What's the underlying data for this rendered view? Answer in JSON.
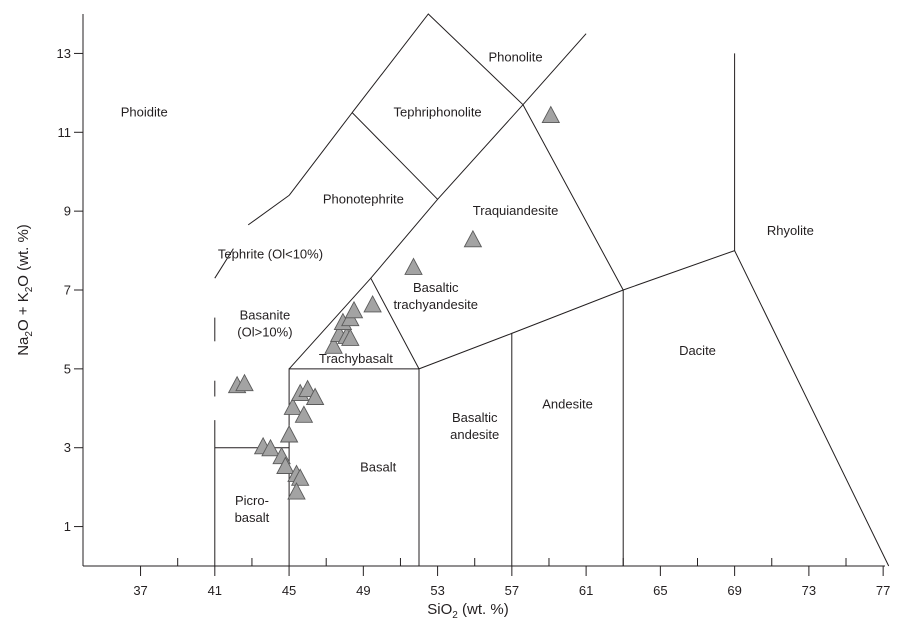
{
  "chart_data": {
    "type": "scatter",
    "diagram": "TAS",
    "xlabel": "SiO",
    "xlabel_sub": "2",
    "xlabel_unit": " (wt. %)",
    "ylabel_parts": [
      "Na",
      "2",
      "O + K",
      "2",
      "O (wt. %)"
    ],
    "xlim": [
      33.9,
      77.1
    ],
    "ylim": [
      0,
      14
    ],
    "x_ticks": [
      37,
      41,
      45,
      49,
      53,
      57,
      61,
      65,
      69,
      73,
      77
    ],
    "y_ticks": [
      1,
      3,
      5,
      7,
      9,
      11,
      13
    ],
    "field_labels": [
      {
        "lines": [
          "Phonolite"
        ],
        "x": 57.2,
        "y": 12.8
      },
      {
        "lines": [
          "Phoidite"
        ],
        "x": 37.2,
        "y": 11.4
      },
      {
        "lines": [
          "Tephriphonolite"
        ],
        "x": 53.0,
        "y": 11.4
      },
      {
        "lines": [
          "Phonotephrite"
        ],
        "x": 49.0,
        "y": 9.2
      },
      {
        "lines": [
          "Traquiandesite"
        ],
        "x": 57.2,
        "y": 8.9
      },
      {
        "lines": [
          "Rhyolite"
        ],
        "x": 72.0,
        "y": 8.4
      },
      {
        "lines": [
          "Tephrite (Ol<10%)"
        ],
        "x": 44.0,
        "y": 7.8
      },
      {
        "lines": [
          "Basaltic",
          "trachyandesite"
        ],
        "x": 52.9,
        "y": 6.95
      },
      {
        "lines": [
          "Basanite",
          "(Ol>10%)"
        ],
        "x": 43.7,
        "y": 6.25
      },
      {
        "lines": [
          "Trachybasalt"
        ],
        "x": 48.6,
        "y": 5.15
      },
      {
        "lines": [
          "Dacite"
        ],
        "x": 67.0,
        "y": 5.35
      },
      {
        "lines": [
          "Andesite"
        ],
        "x": 60.0,
        "y": 4.0
      },
      {
        "lines": [
          "Basaltic",
          "andesite"
        ],
        "x": 55.0,
        "y": 3.65
      },
      {
        "lines": [
          "Basalt"
        ],
        "x": 49.8,
        "y": 2.4
      },
      {
        "lines": [
          "Picro-",
          "basalt"
        ],
        "x": 43.0,
        "y": 1.55
      }
    ],
    "boundaries": [
      [
        [
          45,
          0
        ],
        [
          45,
          5
        ],
        [
          52,
          5
        ],
        [
          52,
          0
        ]
      ],
      [
        [
          52,
          5
        ],
        [
          57,
          5.9
        ],
        [
          57,
          0
        ]
      ],
      [
        [
          57,
          5.9
        ],
        [
          63,
          7
        ],
        [
          63,
          0
        ]
      ],
      [
        [
          63,
          7
        ],
        [
          69,
          8
        ],
        [
          77.3,
          0
        ]
      ],
      [
        [
          69,
          8
        ],
        [
          69,
          13
        ]
      ],
      [
        [
          41,
          3
        ],
        [
          45,
          3
        ]
      ],
      [
        [
          41,
          0
        ],
        [
          41,
          3.7
        ]
      ],
      [
        [
          41,
          4.3
        ],
        [
          41,
          4.7
        ]
      ],
      [
        [
          41,
          5.7
        ],
        [
          41,
          6.3
        ]
      ],
      [
        [
          41,
          7.3
        ],
        [
          42,
          8.05
        ]
      ],
      [
        [
          42.8,
          8.65
        ],
        [
          45,
          9.4
        ]
      ],
      [
        [
          45,
          5
        ],
        [
          49.4,
          7.3
        ],
        [
          52,
          5
        ]
      ],
      [
        [
          49.4,
          7.3
        ],
        [
          53,
          9.3
        ],
        [
          57.6,
          11.7
        ],
        [
          63,
          7
        ]
      ],
      [
        [
          45,
          9.4
        ],
        [
          48.4,
          11.5
        ],
        [
          53,
          9.3
        ]
      ],
      [
        [
          48.4,
          11.5
        ],
        [
          52.5,
          14
        ],
        [
          57.6,
          11.7
        ],
        [
          61,
          13.5
        ]
      ]
    ],
    "samples": [
      {
        "x": 42.2,
        "y": 4.55
      },
      {
        "x": 42.6,
        "y": 4.6
      },
      {
        "x": 43.6,
        "y": 3.0
      },
      {
        "x": 44.0,
        "y": 2.95
      },
      {
        "x": 44.6,
        "y": 2.75
      },
      {
        "x": 44.8,
        "y": 2.5
      },
      {
        "x": 45.0,
        "y": 3.3
      },
      {
        "x": 45.2,
        "y": 4.0
      },
      {
        "x": 45.6,
        "y": 4.35
      },
      {
        "x": 46.0,
        "y": 4.45
      },
      {
        "x": 46.4,
        "y": 4.25
      },
      {
        "x": 45.8,
        "y": 3.8
      },
      {
        "x": 45.4,
        "y": 2.3
      },
      {
        "x": 45.6,
        "y": 2.2
      },
      {
        "x": 45.4,
        "y": 1.85
      },
      {
        "x": 47.4,
        "y": 5.55
      },
      {
        "x": 47.7,
        "y": 5.85
      },
      {
        "x": 48.1,
        "y": 5.8
      },
      {
        "x": 48.3,
        "y": 5.75
      },
      {
        "x": 47.9,
        "y": 6.15
      },
      {
        "x": 48.3,
        "y": 6.25
      },
      {
        "x": 48.5,
        "y": 6.45
      },
      {
        "x": 49.5,
        "y": 6.6
      },
      {
        "x": 51.7,
        "y": 7.55
      },
      {
        "x": 54.9,
        "y": 8.25
      },
      {
        "x": 59.1,
        "y": 11.4
      }
    ]
  }
}
